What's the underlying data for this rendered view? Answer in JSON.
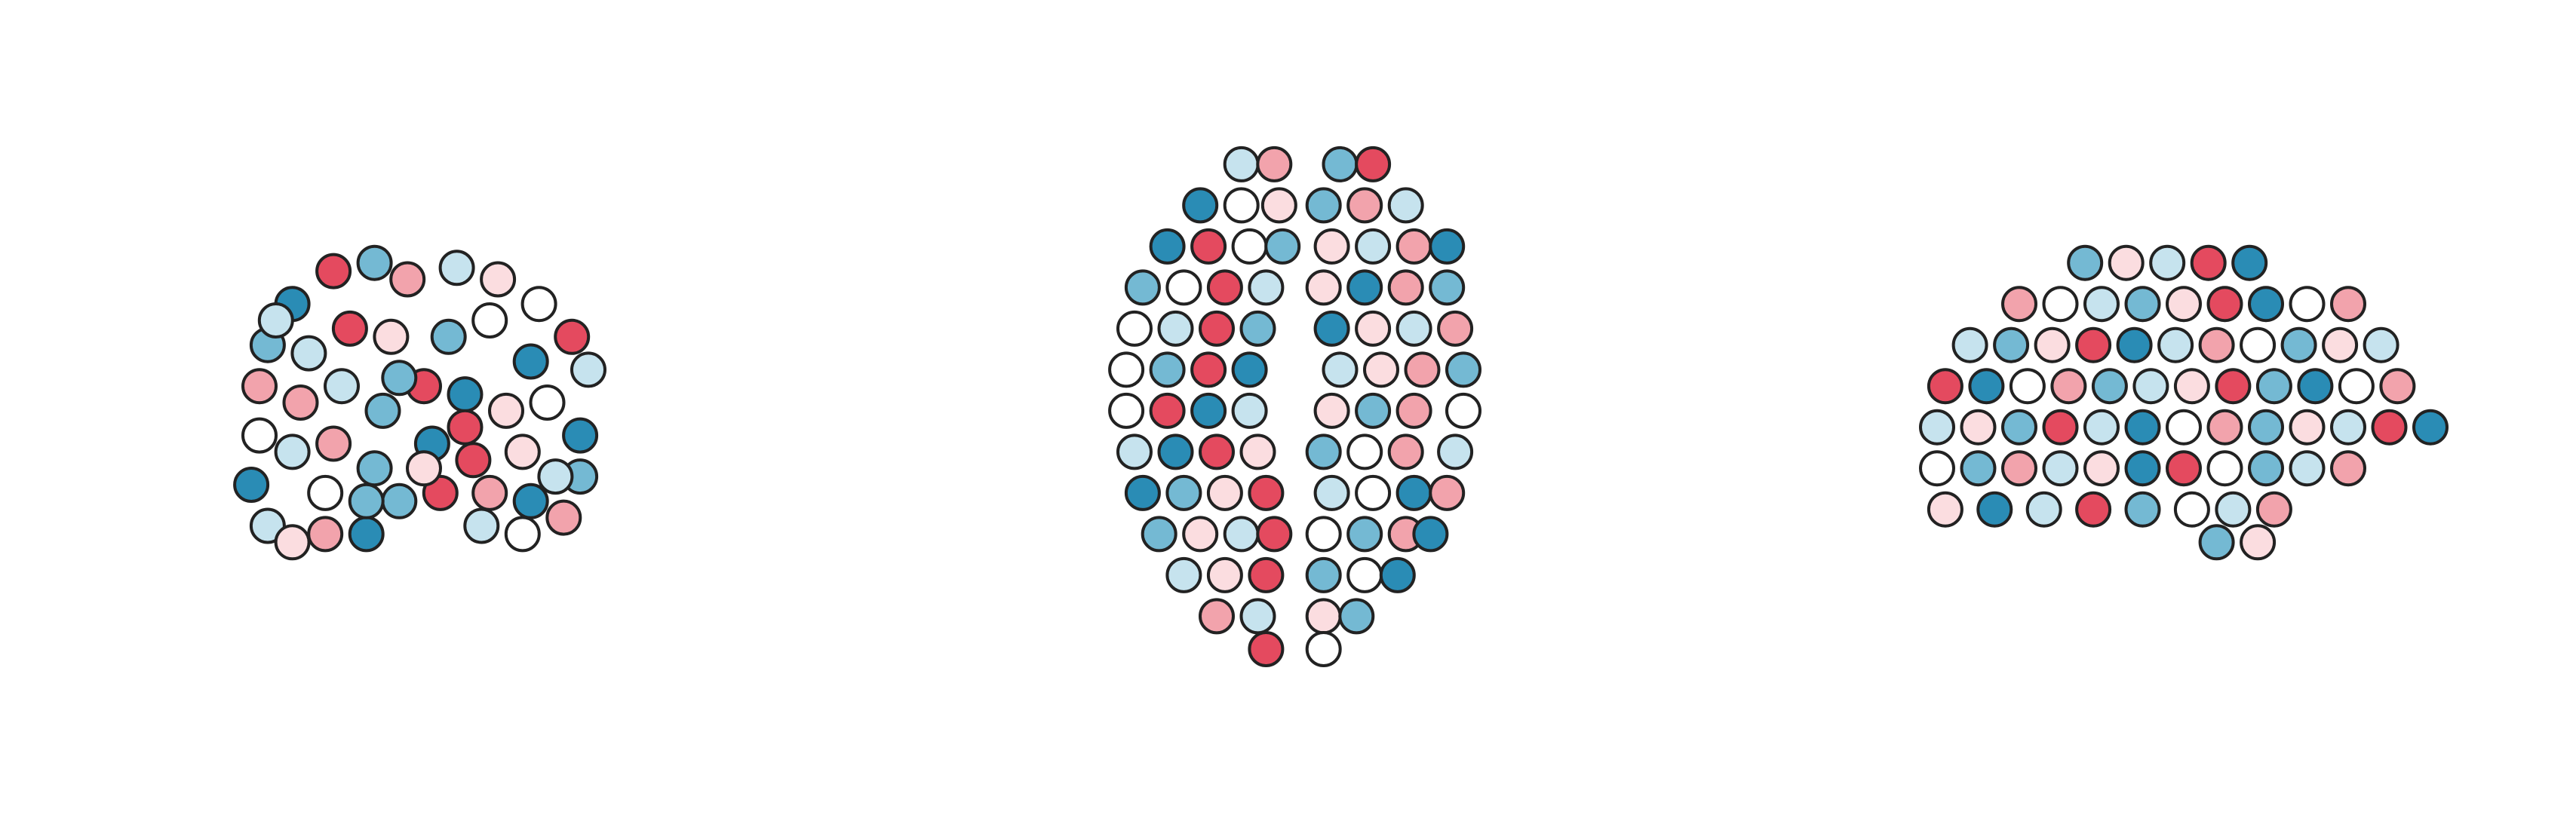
{
  "chart_data": [
    {
      "type": "scatter",
      "colors": [
        "#2a8cb5",
        "#74b9d3",
        "#c6e3ee",
        "#ffffff",
        "#fbdde0",
        "#f2a3ac",
        "#e44a5f"
      ],
      "x": [
        -55,
        -30,
        -10,
        20,
        45,
        70,
        90,
        100,
        -80,
        -95,
        -100,
        -100,
        -105,
        -95,
        -80,
        -60,
        -35,
        -15,
        10,
        35,
        60,
        85,
        95,
        95,
        -70,
        -45,
        -20,
        15,
        40,
        65,
        -75,
        -50,
        -25,
        0,
        25,
        50,
        75,
        -80,
        -55,
        -30,
        5,
        30,
        60,
        80,
        -60,
        -35,
        40,
        65,
        -90,
        0,
        25,
        -15
      ],
      "y": [
        -80,
        -85,
        -75,
        -82,
        -75,
        -60,
        -40,
        -20,
        -60,
        -35,
        -10,
        20,
        50,
        75,
        85,
        80,
        80,
        60,
        55,
        75,
        80,
        70,
        45,
        20,
        -30,
        -45,
        -40,
        -40,
        -50,
        -25,
        0,
        -10,
        5,
        -10,
        -5,
        5,
        0,
        30,
        25,
        40,
        25,
        35,
        30,
        45,
        55,
        60,
        55,
        60,
        -50,
        40,
        15,
        -15
      ],
      "values": [
        6,
        1,
        5,
        2,
        4,
        3,
        6,
        2,
        0,
        1,
        5,
        3,
        0,
        2,
        4,
        5,
        0,
        1,
        6,
        2,
        3,
        5,
        1,
        0,
        2,
        6,
        4,
        1,
        3,
        0,
        5,
        2,
        1,
        6,
        0,
        4,
        3,
        2,
        5,
        1,
        0,
        6,
        4,
        2,
        3,
        1,
        5,
        0,
        2,
        4,
        6,
        1
      ]
    },
    {
      "type": "scatter",
      "colors": [
        "#2a8cb5",
        "#74b9d3",
        "#c6e3ee",
        "#ffffff",
        "#fbdde0",
        "#f2a3ac",
        "#e44a5f"
      ],
      "x": [
        -35,
        -15,
        25,
        45,
        -60,
        -35,
        -12,
        15,
        40,
        65,
        -80,
        -55,
        -30,
        -10,
        20,
        45,
        70,
        90,
        -95,
        -70,
        -45,
        -20,
        15,
        40,
        65,
        90,
        -100,
        -75,
        -50,
        -25,
        20,
        45,
        70,
        95,
        -105,
        -80,
        -55,
        -30,
        25,
        50,
        75,
        100,
        -105,
        -80,
        -55,
        -30,
        20,
        45,
        70,
        100,
        -100,
        -75,
        -50,
        -25,
        15,
        40,
        65,
        95,
        -95,
        -70,
        -45,
        -20,
        20,
        45,
        70,
        90,
        -85,
        -60,
        -35,
        -15,
        15,
        40,
        65,
        80,
        -70,
        -45,
        -20,
        15,
        40,
        60,
        -50,
        -25,
        15,
        35,
        -20,
        15
      ],
      "y": [
        -145,
        -145,
        -145,
        -145,
        -120,
        -120,
        -120,
        -120,
        -120,
        -120,
        -95,
        -95,
        -95,
        -95,
        -95,
        -95,
        -95,
        -95,
        -70,
        -70,
        -70,
        -70,
        -70,
        -70,
        -70,
        -70,
        -45,
        -45,
        -45,
        -45,
        -45,
        -45,
        -45,
        -45,
        -20,
        -20,
        -20,
        -20,
        -20,
        -20,
        -20,
        -20,
        5,
        5,
        5,
        5,
        5,
        5,
        5,
        5,
        30,
        30,
        30,
        30,
        30,
        30,
        30,
        30,
        55,
        55,
        55,
        55,
        55,
        55,
        55,
        55,
        80,
        80,
        80,
        80,
        80,
        80,
        80,
        80,
        105,
        105,
        105,
        105,
        105,
        105,
        130,
        130,
        130,
        130,
        150,
        150
      ],
      "values": [
        2,
        5,
        1,
        6,
        0,
        3,
        4,
        1,
        5,
        2,
        0,
        6,
        3,
        1,
        4,
        2,
        5,
        0,
        1,
        3,
        6,
        2,
        4,
        0,
        5,
        1,
        3,
        2,
        6,
        1,
        0,
        4,
        2,
        5,
        3,
        1,
        6,
        0,
        2,
        4,
        5,
        1,
        3,
        6,
        0,
        2,
        4,
        1,
        5,
        3,
        2,
        0,
        6,
        4,
        1,
        3,
        5,
        2,
        0,
        1,
        4,
        6,
        2,
        3,
        0,
        5,
        1,
        4,
        2,
        6,
        3,
        1,
        5,
        0,
        2,
        4,
        6,
        1,
        3,
        0,
        5,
        2,
        4,
        1,
        6,
        3
      ]
    },
    {
      "type": "scatter",
      "colors": [
        "#2a8cb5",
        "#74b9d3",
        "#c6e3ee",
        "#ffffff",
        "#fbdde0",
        "#f2a3ac",
        "#e44a5f"
      ],
      "x": [
        -60,
        -35,
        -10,
        15,
        40,
        -100,
        -75,
        -50,
        -25,
        0,
        25,
        50,
        75,
        100,
        -130,
        -105,
        -80,
        -55,
        -30,
        -5,
        20,
        45,
        70,
        95,
        120,
        -145,
        -120,
        -95,
        -70,
        -45,
        -20,
        5,
        30,
        55,
        80,
        105,
        130,
        -150,
        -125,
        -100,
        -75,
        -50,
        -25,
        0,
        25,
        50,
        75,
        100,
        125,
        150,
        -150,
        -125,
        -100,
        -75,
        -50,
        -25,
        0,
        25,
        50,
        75,
        100,
        -145,
        -115,
        -85,
        -55,
        -25,
        5,
        30,
        55,
        20,
        45
      ],
      "y": [
        -85,
        -85,
        -85,
        -85,
        -85,
        -60,
        -60,
        -60,
        -60,
        -60,
        -60,
        -60,
        -60,
        -60,
        -35,
        -35,
        -35,
        -35,
        -35,
        -35,
        -35,
        -35,
        -35,
        -35,
        -35,
        -10,
        -10,
        -10,
        -10,
        -10,
        -10,
        -10,
        -10,
        -10,
        -10,
        -10,
        -10,
        15,
        15,
        15,
        15,
        15,
        15,
        15,
        15,
        15,
        15,
        15,
        15,
        15,
        40,
        40,
        40,
        40,
        40,
        40,
        40,
        40,
        40,
        40,
        40,
        65,
        65,
        65,
        65,
        65,
        65,
        65,
        65,
        85,
        85
      ],
      "values": [
        1,
        4,
        2,
        6,
        0,
        5,
        3,
        2,
        1,
        4,
        6,
        0,
        3,
        5,
        2,
        1,
        4,
        6,
        0,
        2,
        5,
        3,
        1,
        4,
        2,
        6,
        0,
        3,
        5,
        1,
        2,
        4,
        6,
        1,
        0,
        3,
        5,
        2,
        4,
        1,
        6,
        2,
        0,
        3,
        5,
        1,
        4,
        2,
        6,
        0,
        3,
        1,
        5,
        2,
        4,
        0,
        6,
        3,
        1,
        2,
        5,
        4,
        0,
        2,
        6,
        1,
        3,
        2,
        5,
        1,
        4
      ]
    }
  ]
}
